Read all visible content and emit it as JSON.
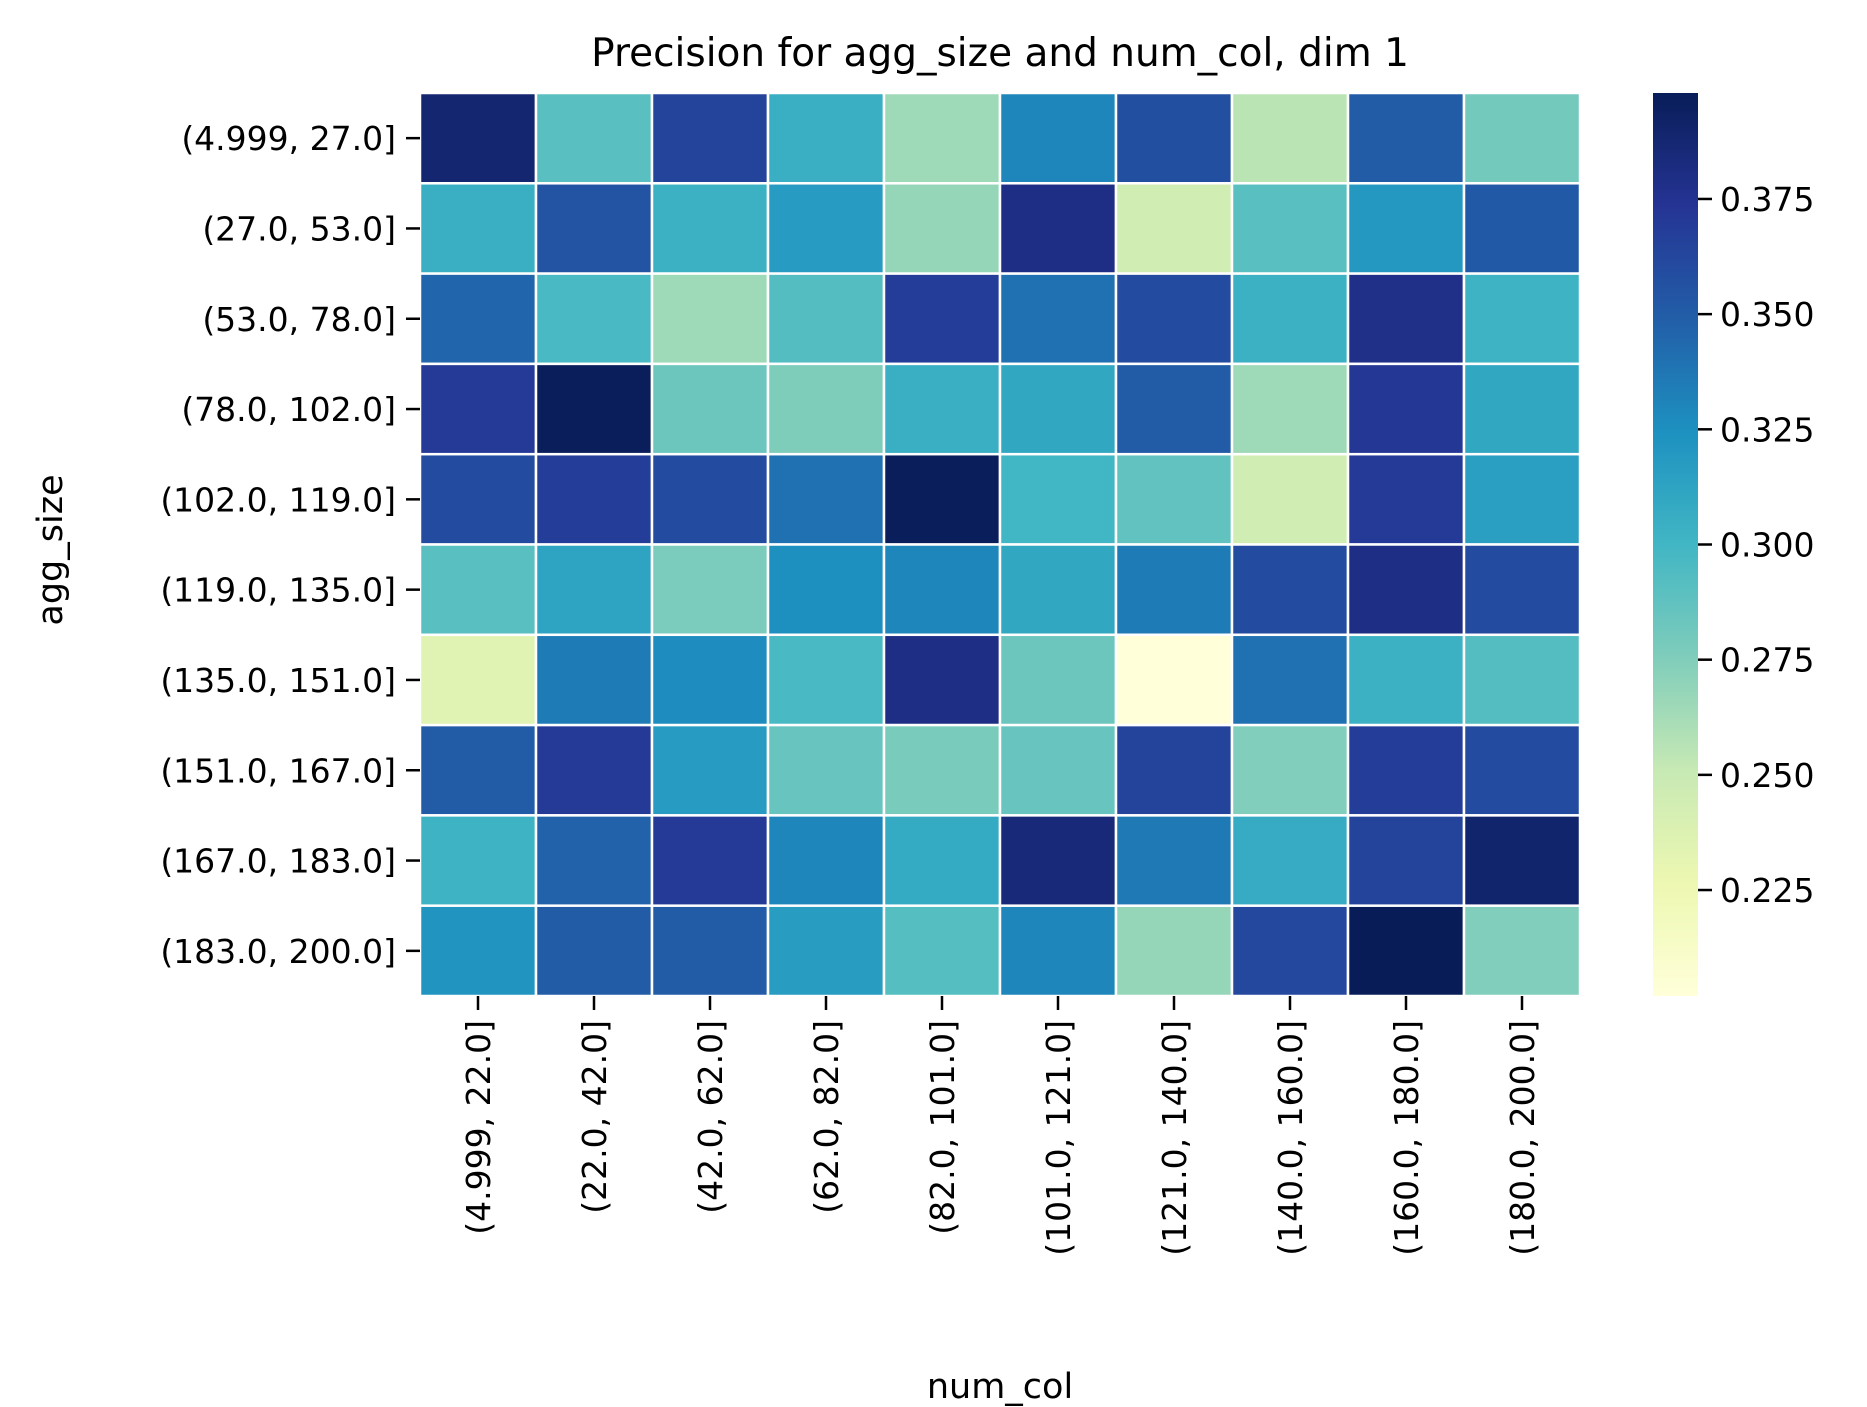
{
  "chart_data": {
    "type": "heatmap",
    "title": "Precision for agg_size and num_col, dim 1",
    "xlabel": "num_col",
    "ylabel": "agg_size",
    "x_categories": [
      "(4.999, 22.0]",
      "(22.0, 42.0]",
      "(42.0, 62.0]",
      "(62.0, 82.0]",
      "(82.0, 101.0]",
      "(101.0, 121.0]",
      "(121.0, 140.0]",
      "(140.0, 160.0]",
      "(160.0, 180.0]",
      "(180.0, 200.0]"
    ],
    "y_categories": [
      "(4.999, 27.0]",
      "(27.0, 53.0]",
      "(53.0, 78.0]",
      "(78.0, 102.0]",
      "(102.0, 119.0]",
      "(119.0, 135.0]",
      "(135.0, 151.0]",
      "(151.0, 167.0]",
      "(167.0, 183.0]",
      "(183.0, 200.0]"
    ],
    "values": [
      [
        0.388,
        0.29,
        0.365,
        0.305,
        0.265,
        0.33,
        0.358,
        0.255,
        0.35,
        0.28
      ],
      [
        0.305,
        0.355,
        0.303,
        0.318,
        0.268,
        0.38,
        0.245,
        0.29,
        0.32,
        0.352
      ],
      [
        0.345,
        0.297,
        0.265,
        0.293,
        0.368,
        0.34,
        0.36,
        0.303,
        0.378,
        0.302
      ],
      [
        0.37,
        0.397,
        0.283,
        0.276,
        0.305,
        0.31,
        0.35,
        0.265,
        0.372,
        0.31
      ],
      [
        0.36,
        0.368,
        0.36,
        0.34,
        0.397,
        0.3,
        0.287,
        0.245,
        0.37,
        0.315
      ],
      [
        0.29,
        0.312,
        0.277,
        0.325,
        0.33,
        0.31,
        0.335,
        0.36,
        0.38,
        0.36
      ],
      [
        0.235,
        0.335,
        0.327,
        0.297,
        0.38,
        0.283,
        0.202,
        0.34,
        0.303,
        0.293
      ],
      [
        0.35,
        0.37,
        0.318,
        0.285,
        0.278,
        0.285,
        0.365,
        0.275,
        0.368,
        0.36
      ],
      [
        0.302,
        0.347,
        0.37,
        0.33,
        0.308,
        0.385,
        0.336,
        0.307,
        0.365,
        0.39
      ],
      [
        0.322,
        0.35,
        0.35,
        0.317,
        0.292,
        0.33,
        0.268,
        0.362,
        0.398,
        0.275
      ]
    ],
    "colormap": "YlGnBu",
    "vmin": 0.202,
    "vmax": 0.398,
    "colorbar_ticks": [
      "0.225",
      "0.250",
      "0.275",
      "0.300",
      "0.325",
      "0.350",
      "0.375"
    ],
    "cell_border_color": "#ffffff"
  }
}
